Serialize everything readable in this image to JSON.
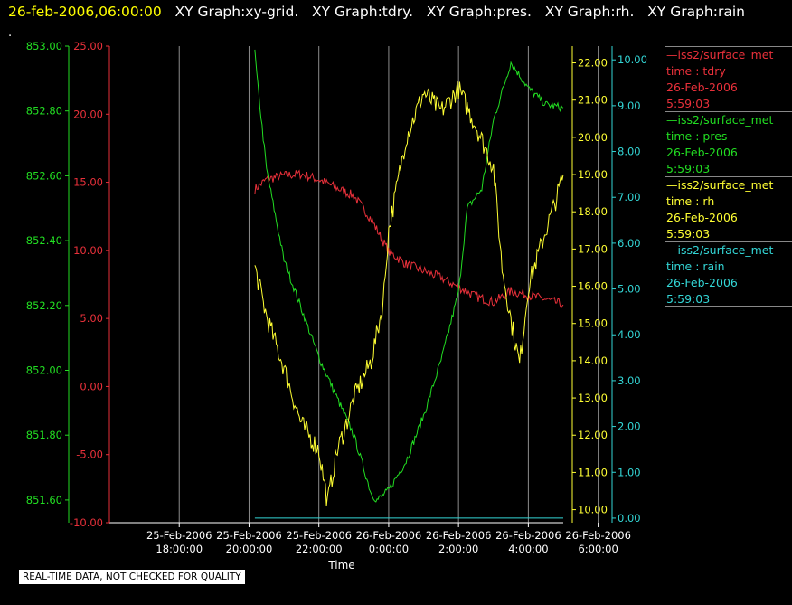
{
  "header": {
    "timestamp": "26-feb-2006,06:00:00",
    "graphs": [
      "XY Graph:xy-grid.",
      "XY Graph:tdry.",
      "XY Graph:pres.",
      "XY Graph:rh.",
      "XY Graph:rain"
    ],
    "dot": "."
  },
  "footer": {
    "quality_notice": "REAL-TIME DATA, NOT CHECKED FOR QUALITY"
  },
  "legend": [
    {
      "line1": "—iss2/surface_met",
      "line2": "time : tdry",
      "line3": "26-Feb-2006",
      "line4": "5:59:03",
      "color": "#e8303a"
    },
    {
      "line1": "—iss2/surface_met",
      "line2": "time : pres",
      "line3": "26-Feb-2006",
      "line4": "5:59:03",
      "color": "#22dd22"
    },
    {
      "line1": "—iss2/surface_met",
      "line2": "time : rh",
      "line3": "26-Feb-2006",
      "line4": "5:59:03",
      "color": "#ffff33"
    },
    {
      "line1": "—iss2/surface_met",
      "line2": "time : rain",
      "line3": "26-Feb-2006",
      "line4": "5:59:03",
      "color": "#33d6d6"
    }
  ],
  "chart_data": {
    "type": "line",
    "xlabel": "Time",
    "grid": true,
    "x_ticks": [
      {
        "date": "25-Feb-2006",
        "time": "18:00:00"
      },
      {
        "date": "25-Feb-2006",
        "time": "20:00:00"
      },
      {
        "date": "25-Feb-2006",
        "time": "22:00:00"
      },
      {
        "date": "26-Feb-2006",
        "time": "0:00:00"
      },
      {
        "date": "26-Feb-2006",
        "time": "2:00:00"
      },
      {
        "date": "26-Feb-2006",
        "time": "4:00:00"
      },
      {
        "date": "26-Feb-2006",
        "time": "6:00:00"
      }
    ],
    "xlim": [
      "25-Feb-2006 17:00",
      "26-Feb-2006 06:00"
    ],
    "axes": [
      {
        "name": "pres",
        "color": "#22dd22",
        "ticks": [
          "853.00",
          "852.80",
          "852.60",
          "852.40",
          "852.20",
          "852.00",
          "851.80",
          "851.60"
        ],
        "ylim": [
          851.53,
          853.0
        ]
      },
      {
        "name": "tdry",
        "color": "#e8303a",
        "ticks": [
          "25.00",
          "20.00",
          "15.00",
          "10.00",
          "5.00",
          "0.00",
          "-5.00",
          "-10.00"
        ],
        "ylim": [
          -10,
          25
        ]
      },
      {
        "name": "rh",
        "color": "#ffff33",
        "ticks": [
          "22.00",
          "21.00",
          "20.00",
          "19.00",
          "18.00",
          "17.00",
          "16.00",
          "15.00",
          "14.00",
          "13.00",
          "12.00",
          "11.00",
          "10.00"
        ],
        "ylim": [
          9.65,
          22.45
        ]
      },
      {
        "name": "rain",
        "color": "#33d6d6",
        "ticks": [
          "10.00",
          "9.00",
          "8.00",
          "7.00",
          "6.00",
          "5.00",
          "4.00",
          "3.00",
          "2.00",
          "1.00",
          "0.00"
        ],
        "ylim": [
          -0.1,
          10.3
        ]
      }
    ],
    "series": [
      {
        "name": "tdry",
        "color": "#e8303a",
        "x": [
          "25-Feb-2006 21:10",
          "25-Feb-2006 21:30",
          "25-Feb-2006 22:00",
          "25-Feb-2006 22:30",
          "25-Feb-2006 23:00",
          "25-Feb-2006 23:30",
          "26-Feb-2006 00:00",
          "26-Feb-2006 00:30",
          "26-Feb-2006 01:00",
          "26-Feb-2006 01:30",
          "26-Feb-2006 02:00",
          "26-Feb-2006 02:30",
          "26-Feb-2006 03:00",
          "26-Feb-2006 03:30",
          "26-Feb-2006 04:00",
          "26-Feb-2006 04:30",
          "26-Feb-2006 05:00",
          "26-Feb-2006 05:30",
          "26-Feb-2006 06:00"
        ],
        "y": [
          14.5,
          15.2,
          15.5,
          15.6,
          15.2,
          14.6,
          14.0,
          12.3,
          9.9,
          9.0,
          8.5,
          8.0,
          7.3,
          6.6,
          6.2,
          7.0,
          6.7,
          6.4,
          6.0
        ]
      },
      {
        "name": "pres",
        "color": "#22dd22",
        "x": [
          "25-Feb-2006 21:10",
          "25-Feb-2006 21:15",
          "25-Feb-2006 21:30",
          "25-Feb-2006 22:00",
          "25-Feb-2006 22:30",
          "25-Feb-2006 23:00",
          "25-Feb-2006 23:30",
          "26-Feb-2006 00:00",
          "26-Feb-2006 00:30",
          "26-Feb-2006 00:40",
          "26-Feb-2006 01:00",
          "26-Feb-2006 01:30",
          "26-Feb-2006 02:00",
          "26-Feb-2006 02:30",
          "26-Feb-2006 03:00",
          "26-Feb-2006 03:15",
          "26-Feb-2006 03:40",
          "26-Feb-2006 04:00",
          "26-Feb-2006 04:30",
          "26-Feb-2006 05:00",
          "26-Feb-2006 05:30",
          "26-Feb-2006 06:00"
        ],
        "y": [
          852.98,
          852.88,
          852.62,
          852.34,
          852.19,
          852.04,
          851.92,
          851.8,
          851.62,
          851.6,
          851.63,
          851.72,
          851.86,
          852.03,
          852.24,
          852.5,
          852.56,
          852.77,
          852.95,
          852.87,
          852.82,
          852.81
        ]
      },
      {
        "name": "rh",
        "color": "#ffff33",
        "x": [
          "25-Feb-2006 21:10",
          "25-Feb-2006 21:30",
          "25-Feb-2006 22:00",
          "25-Feb-2006 22:30",
          "25-Feb-2006 23:00",
          "25-Feb-2006 23:15",
          "25-Feb-2006 23:30",
          "25-Feb-2006 23:45",
          "26-Feb-2006 00:00",
          "26-Feb-2006 00:30",
          "26-Feb-2006 00:50",
          "26-Feb-2006 01:00",
          "26-Feb-2006 01:30",
          "26-Feb-2006 02:00",
          "26-Feb-2006 02:30",
          "26-Feb-2006 03:00",
          "26-Feb-2006 03:30",
          "26-Feb-2006 04:00",
          "26-Feb-2006 04:15",
          "26-Feb-2006 04:30",
          "26-Feb-2006 04:45",
          "26-Feb-2006 05:00",
          "26-Feb-2006 05:30",
          "26-Feb-2006 05:45",
          "26-Feb-2006 06:00"
        ],
        "y": [
          16.5,
          15.2,
          13.8,
          12.3,
          11.6,
          10.2,
          11.5,
          12.2,
          13.0,
          14.0,
          15.5,
          17.5,
          20.0,
          21.2,
          20.7,
          21.3,
          20.3,
          19.2,
          16.5,
          15.1,
          13.9,
          16.0,
          17.5,
          18.2,
          19.0
        ]
      },
      {
        "name": "rain",
        "color": "#33d6d6",
        "x": [
          "25-Feb-2006 21:10",
          "26-Feb-2006 06:00"
        ],
        "y": [
          0.0,
          0.0
        ]
      }
    ]
  }
}
